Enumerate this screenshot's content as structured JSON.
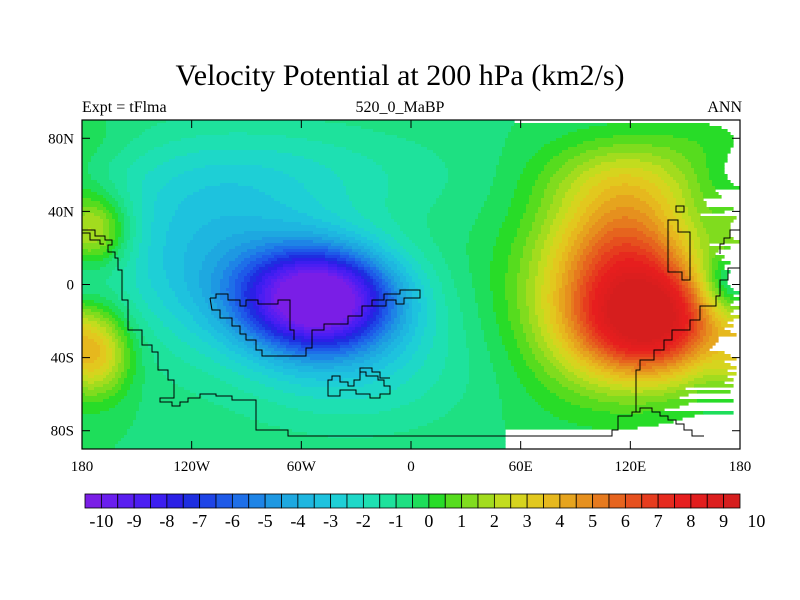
{
  "header": {
    "title": "Velocity Potential at 200 hPa (km2/s)",
    "left": "Expt = tFlma",
    "center": "520_0_MaBP",
    "right": "ANN"
  },
  "chart_data": {
    "type": "heatmap",
    "title": "Velocity Potential at 200 hPa (km2/s)",
    "units": "km2/s",
    "projection": "cylindrical-equidistant",
    "xlim": [
      -180,
      180
    ],
    "ylim": [
      -90,
      90
    ],
    "x_ticks": [
      {
        "value": -180,
        "label": "180"
      },
      {
        "value": -120,
        "label": "120W"
      },
      {
        "value": -60,
        "label": "60W"
      },
      {
        "value": 0,
        "label": "0"
      },
      {
        "value": 60,
        "label": "60E"
      },
      {
        "value": 120,
        "label": "120E"
      },
      {
        "value": 180,
        "label": "180"
      }
    ],
    "y_ticks": [
      {
        "value": 80,
        "label": "80N"
      },
      {
        "value": 40,
        "label": "40N"
      },
      {
        "value": 0,
        "label": "0"
      },
      {
        "value": -40,
        "label": "40S"
      },
      {
        "value": -80,
        "label": "80S"
      }
    ],
    "contour_levels": [
      -10,
      -9.5,
      -9,
      -8.5,
      -8,
      -7.5,
      -7,
      -6.5,
      -6,
      -5.5,
      -5,
      -4.5,
      -4,
      -3.5,
      -3,
      -2.5,
      -2,
      -1.5,
      -1,
      -0.5,
      0,
      0.5,
      1,
      1.5,
      2,
      2.5,
      3,
      3.5,
      4,
      4.5,
      5,
      5.5,
      6,
      6.5,
      7,
      7.5,
      8,
      8.5,
      9,
      9.5,
      10
    ],
    "colorbar_labels": [
      "-10",
      "-9",
      "-8",
      "-7",
      "-6",
      "-5",
      "-4",
      "-3",
      "-2",
      "-1",
      "0",
      "1",
      "2",
      "3",
      "4",
      "5",
      "6",
      "7",
      "8",
      "9",
      "10"
    ],
    "colorbar_colors": [
      "#7a1ee6",
      "#6a1eee",
      "#5a1ef0",
      "#4b1ef2",
      "#3c1ef0",
      "#2b20e6",
      "#1e2ee0",
      "#1e44e6",
      "#1e5ae8",
      "#1e6fe8",
      "#1e84e6",
      "#1e98e2",
      "#1ea8e0",
      "#1eb6e0",
      "#1ec2de",
      "#1ecfd6",
      "#1ed8c8",
      "#1ee0b2",
      "#1ee29c",
      "#1ee082",
      "#1ede5a",
      "#28dc28",
      "#56dc1e",
      "#80dc1e",
      "#a2dc1e",
      "#c2dc1e",
      "#d6d41e",
      "#e2c81e",
      "#e6b81e",
      "#e6a41e",
      "#e6901e",
      "#e67a1e",
      "#e6641e",
      "#e6501e",
      "#e63c1e",
      "#e62a1e",
      "#e61e1e",
      "#e21e1e",
      "#dc1e1e",
      "#d61e1e"
    ],
    "features": [
      {
        "name": "minimum",
        "lon": -50,
        "lat": -10,
        "value": -9.5
      },
      {
        "name": "maximum",
        "lon": 130,
        "lat": -20,
        "value": 8.5
      },
      {
        "name": "secondary-maximum",
        "lon": -170,
        "lat": 30,
        "value": 3
      },
      {
        "name": "secondary-maximum",
        "lon": -170,
        "lat": -40,
        "value": 3.5
      }
    ]
  }
}
